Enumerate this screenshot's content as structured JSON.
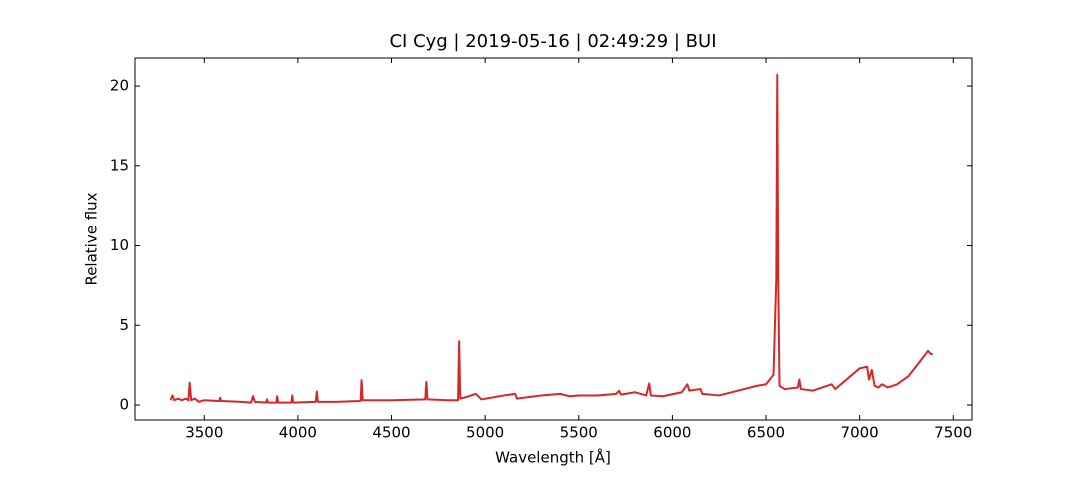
{
  "chart_data": {
    "type": "line",
    "title": "CI Cyg | 2019-05-16 | 02:49:29 | BUI",
    "x_label": "Wavelength [Å]",
    "y_label": "Relative flux",
    "xlim": [
      3130,
      7600
    ],
    "ylim": [
      -0.94,
      21.76
    ],
    "xticks": [
      3500,
      4000,
      4500,
      5000,
      5500,
      6000,
      6500,
      7000,
      7500
    ],
    "yticks": [
      0,
      5,
      10,
      15,
      20
    ],
    "series": [
      {
        "color": "#d62728",
        "x": [
          3320,
          3330,
          3340,
          3360,
          3380,
          3400,
          3415,
          3422,
          3430,
          3450,
          3470,
          3500,
          3580,
          3585,
          3590,
          3700,
          3750,
          3760,
          3770,
          3830,
          3835,
          3840,
          3885,
          3889,
          3895,
          3965,
          3970,
          3975,
          4095,
          4101,
          4107,
          4200,
          4335,
          4340,
          4346,
          4500,
          4680,
          4686,
          4692,
          4800,
          4855,
          4861,
          4867,
          4900,
          4950,
          4980,
          5100,
          5160,
          5170,
          5300,
          5400,
          5450,
          5500,
          5600,
          5700,
          5715,
          5725,
          5800,
          5860,
          5876,
          5885,
          5950,
          6050,
          6080,
          6090,
          6150,
          6160,
          6250,
          6350,
          6450,
          6500,
          6540,
          6555,
          6560,
          6565,
          6572,
          6600,
          6670,
          6678,
          6686,
          6750,
          6850,
          6870,
          6950,
          7000,
          7040,
          7050,
          7065,
          7080,
          7100,
          7120,
          7150,
          7200,
          7260,
          7300,
          7340,
          7365,
          7380,
          7390
        ],
        "values": [
          0.3,
          0.6,
          0.3,
          0.4,
          0.3,
          0.4,
          0.3,
          1.4,
          0.3,
          0.4,
          0.2,
          0.3,
          0.25,
          0.45,
          0.25,
          0.2,
          0.15,
          0.55,
          0.2,
          0.15,
          0.35,
          0.15,
          0.15,
          0.55,
          0.15,
          0.15,
          0.6,
          0.15,
          0.2,
          0.85,
          0.2,
          0.2,
          0.25,
          1.55,
          0.3,
          0.3,
          0.35,
          1.45,
          0.35,
          0.3,
          0.3,
          4.0,
          0.4,
          0.5,
          0.7,
          0.35,
          0.6,
          0.7,
          0.4,
          0.6,
          0.7,
          0.55,
          0.6,
          0.6,
          0.7,
          0.9,
          0.65,
          0.8,
          0.6,
          1.35,
          0.6,
          0.55,
          0.8,
          1.3,
          0.9,
          1.0,
          0.7,
          0.6,
          0.9,
          1.2,
          1.3,
          1.9,
          8,
          20.7,
          8,
          1.2,
          1.0,
          1.1,
          1.6,
          1.0,
          0.9,
          1.3,
          1.0,
          1.8,
          2.3,
          2.4,
          1.6,
          2.2,
          1.2,
          1.1,
          1.3,
          1.1,
          1.3,
          1.8,
          2.4,
          3.0,
          3.4,
          3.2,
          3.2
        ]
      }
    ]
  }
}
